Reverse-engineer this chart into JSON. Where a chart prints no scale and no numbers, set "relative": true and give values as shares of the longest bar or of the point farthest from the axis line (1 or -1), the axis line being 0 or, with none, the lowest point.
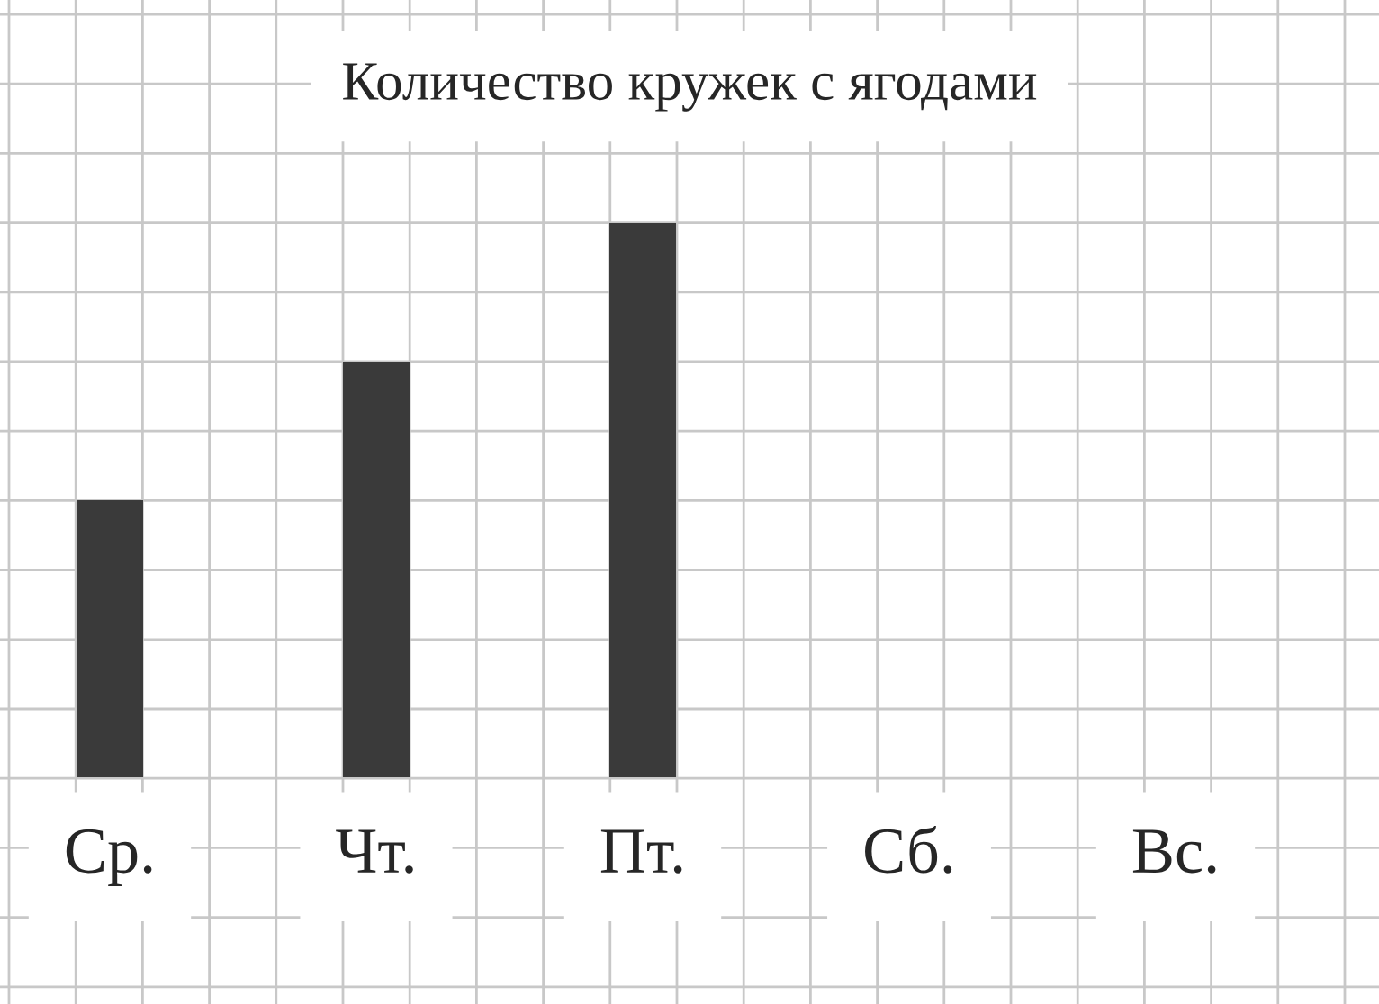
{
  "chart_data": {
    "type": "bar",
    "title": "Количество кружек с ягодами",
    "categories": [
      "Ср.",
      "Чт.",
      "Пт.",
      "Сб.",
      "Вс."
    ],
    "values": [
      0.5,
      0.75,
      1,
      0,
      0
    ],
    "color": "#3a3a3a",
    "relative": true,
    "grid": true
  }
}
